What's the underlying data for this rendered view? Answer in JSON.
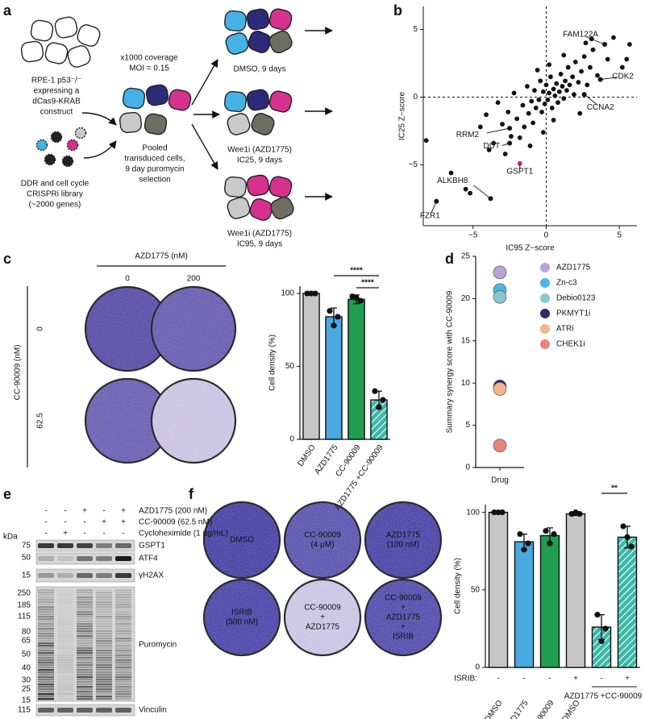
{
  "panel_labels": [
    "a",
    "b",
    "c",
    "d",
    "e",
    "f"
  ],
  "panel_a": {
    "parental": [
      "RPE-1 p53⁻/⁻",
      "expressing a",
      "dCas9-KRAB",
      "construct"
    ],
    "library": [
      "DDR and cell cycle",
      "CRISPRi library",
      "(~2000 genes)"
    ],
    "coverage": [
      "x1000 coverage",
      "MOI = 0.15"
    ],
    "pooled": [
      "Pooled",
      "transduced cells,",
      "9 day puromycin",
      "selection"
    ],
    "conditions": [
      [
        "DMSO, 9 days"
      ],
      [
        "Wee1i (AZD1775)",
        "IC25, 9 days"
      ],
      [
        "Wee1i (AZD1775)",
        "IC95, 9 days"
      ]
    ]
  },
  "panel_c_plates": {
    "column_title": "AZD1775 (nM)",
    "columns": [
      "0",
      "200"
    ],
    "row_title": "CC-90009 (nM)",
    "rows": [
      "0",
      "62.5"
    ]
  },
  "panel_e": {
    "treatments": [
      {
        "label": "AZD1775 (200 nM)",
        "lanes": [
          "-",
          "-",
          "+",
          "-",
          "+"
        ]
      },
      {
        "label": "CC-90009 (62.5 nM)",
        "lanes": [
          "-",
          "-",
          "-",
          "+",
          "+"
        ]
      },
      {
        "label": "Cycloheximide (1 μg/mL)",
        "lanes": [
          "-",
          "+",
          "-",
          "-",
          "-"
        ]
      }
    ],
    "kda_label": "kDa",
    "blots": [
      {
        "label": "GSPT1",
        "markers": [
          "75"
        ]
      },
      {
        "label": "ATF4",
        "markers": [
          "50"
        ]
      },
      {
        "label": "γH2AX",
        "markers": [
          "15"
        ]
      },
      {
        "label": "Puromycin",
        "markers": [
          "250",
          "185",
          "115",
          "80",
          "65",
          "50",
          "40",
          "30",
          "25",
          "15"
        ]
      },
      {
        "label": "Vinculin",
        "markers": [
          "115"
        ]
      }
    ]
  },
  "panel_f_plates": {
    "wells": [
      [
        "DMSO"
      ],
      [
        "CC-90009",
        "(4 μM)"
      ],
      [
        "AZD1775",
        "(100 nM)"
      ],
      [
        "ISRIB",
        "(500 nM)"
      ],
      [
        "CC-90009",
        "+",
        "AZD1775"
      ],
      [
        "CC-90009",
        "+",
        "AZD1775",
        "+",
        "ISRIB"
      ]
    ]
  },
  "chart_data": [
    {
      "type": "scatter",
      "xlabel": "IC95 Z−score",
      "ylabel": "IC25 Z−score",
      "color": "#111111",
      "xlim": [
        -8.4,
        6.2
      ],
      "ylim": [
        -9.5,
        6.7
      ],
      "xticks": [
        {
          "value": -5,
          "label": "−5"
        },
        0,
        5
      ],
      "yticks": [
        {
          "value": -5,
          "label": "−5"
        },
        0,
        5
      ],
      "x": [
        -8.2,
        -6.5,
        -5.5,
        -5.2,
        -4.5,
        -4.1,
        -3.6,
        -3.3,
        -3.0,
        -2.8,
        -2.6,
        -2.4,
        -2.2,
        -2.0,
        -1.8,
        -1.6,
        -1.5,
        -1.3,
        -1.2,
        -1.0,
        -0.9,
        -0.8,
        -0.7,
        -0.5,
        -0.4,
        -0.3,
        -0.2,
        -0.1,
        0,
        0.1,
        0.2,
        0.3,
        0.4,
        0.5,
        0.6,
        0.7,
        0.8,
        0.9,
        1.0,
        1.1,
        1.2,
        1.3,
        1.4,
        1.5,
        1.6,
        1.8,
        1.9,
        2.0,
        2.2,
        2.4,
        2.6,
        2.8,
        3.0,
        3.2,
        3.5,
        3.1,
        2.7,
        4.2,
        5.2,
        5.7,
        5.5,
        1.2,
        -0.6,
        0.2,
        2.3,
        -3.9,
        -1.1,
        0.5,
        -0.2,
        4.6
      ],
      "y": [
        -3.2,
        -5.6,
        -6.8,
        -7.1,
        -2.2,
        -1.3,
        -3.4,
        -0.4,
        -2.0,
        -4.2,
        -1.1,
        -2.9,
        0.3,
        -1.6,
        -3.0,
        -0.6,
        -2.2,
        0.8,
        -1.2,
        -0.3,
        -1.9,
        0.5,
        -0.8,
        -0.2,
        1.2,
        -1.1,
        0.4,
        -0.5,
        0.9,
        -0.2,
        0.3,
        1.5,
        -0.8,
        0.6,
        0.1,
        1.0,
        -0.4,
        0.4,
        1.7,
        0.8,
        -0.1,
        1.2,
        0.5,
        2.2,
        0.9,
        1.5,
        0.2,
        2.6,
        1.1,
        1.9,
        3.0,
        0.9,
        2.2,
        3.5,
        1.6,
        4.3,
        4.0,
        2.8,
        2.2,
        3.9,
        2.8,
        3.1,
        2.0,
        2.4,
        -1.2,
        -3.9,
        -3.6,
        -1.7,
        -2.6,
        4.4
      ],
      "annotations": [
        {
          "text": "FAM122A",
          "x": 4.0,
          "y": 3.9,
          "color": "#111111"
        },
        {
          "text": "CDK2",
          "x": 3.7,
          "y": 1.3,
          "color": "#111111"
        },
        {
          "text": "CCNA2",
          "x": 2.6,
          "y": 0.2,
          "color": "#111111"
        },
        {
          "text": "RRM2",
          "x": -2.5,
          "y": -2.3,
          "color": "#111111"
        },
        {
          "text": "DUT",
          "x": -2.5,
          "y": -3.4,
          "color": "#111111"
        },
        {
          "text": "GSPT1",
          "x": -1.8,
          "y": -4.9,
          "color": "#d6258a"
        },
        {
          "text": "ALKBH8",
          "x": -3.8,
          "y": -7.5,
          "color": "#111111"
        },
        {
          "text": "FZR1",
          "x": -7.5,
          "y": -7.7,
          "color": "#111111"
        }
      ]
    },
    {
      "type": "bar",
      "ylabel": "Cell density (%)",
      "categories": [
        "DMSO",
        "AZD1775",
        "CC-90009",
        "AZD1775 +CC-90009"
      ],
      "values": [
        100,
        84,
        96,
        27
      ],
      "errors": [
        0,
        6,
        3,
        6
      ],
      "points": [
        [
          100,
          100,
          100
        ],
        [
          88,
          84,
          78
        ],
        [
          98,
          95,
          97
        ],
        [
          33,
          27,
          22
        ]
      ],
      "colors": [
        "#c6c6c6",
        "#49a9df",
        "#1f9e4f",
        "#3cb8a8"
      ],
      "hatched": [
        false,
        false,
        false,
        true
      ],
      "ylim": [
        0,
        105
      ],
      "yticks": [
        0,
        50,
        100
      ],
      "significance": [
        "****",
        "****"
      ]
    },
    {
      "type": "dot",
      "ylabel": "Summary synergy score with CC-90009",
      "xlabel": "Drug",
      "ylim": [
        0,
        25
      ],
      "yticks": [
        0,
        5,
        10,
        15,
        20,
        25
      ],
      "series": [
        {
          "name": "AZD1775",
          "color": "#b9a2d8",
          "value": 23.1
        },
        {
          "name": "Zn-c3",
          "color": "#49b8e8",
          "value": 21.0
        },
        {
          "name": "Debio0123",
          "color": "#86c9cc",
          "value": 20.2
        },
        {
          "name": "PKMYT1i",
          "color": "#2e2a6b",
          "value": 9.6
        },
        {
          "name": "ATRi",
          "color": "#f4b48c",
          "value": 9.3
        },
        {
          "name": "CHEK1i",
          "color": "#e8857a",
          "value": 2.6
        }
      ]
    },
    {
      "type": "bar",
      "ylabel": "Cell density (%)",
      "categories": [
        "DMSO",
        "AZD1775",
        "CC-90009",
        "DMSO",
        null,
        null
      ],
      "values": [
        100,
        81,
        85,
        99,
        26,
        84
      ],
      "errors": [
        0,
        5,
        5,
        1,
        8,
        7
      ],
      "points": [
        [
          100,
          100,
          100
        ],
        [
          86,
          80,
          76
        ],
        [
          88,
          86,
          80
        ],
        [
          99,
          99,
          100
        ],
        [
          34,
          25,
          17
        ],
        [
          91,
          78,
          84
        ]
      ],
      "colors": [
        "#c6c6c6",
        "#49a9df",
        "#1f9e4f",
        "#c6c6c6",
        "#3cb8a8",
        "#3cb8a8"
      ],
      "hatched": [
        false,
        false,
        false,
        false,
        true,
        true
      ],
      "row_label": "ISRIB:",
      "row_values": [
        "-",
        "-",
        "-",
        "+",
        "-",
        "+"
      ],
      "group_label": "AZD1775 +CC-90009",
      "ylim": [
        0,
        105
      ],
      "yticks": [
        0,
        50,
        100
      ],
      "significance": [
        "**"
      ]
    }
  ]
}
